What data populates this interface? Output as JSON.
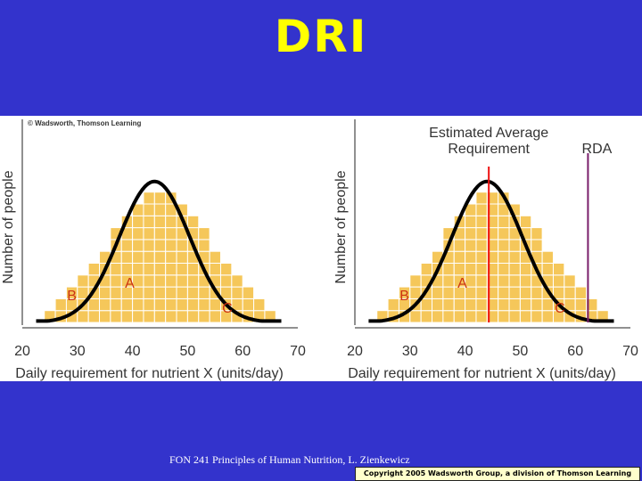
{
  "slide": {
    "title": "DRI",
    "footer": "FON 241 Principles of Human Nutrition, L. Zienkewicz",
    "copyright": "Copyright 2005 Wadsworth Group, a division of Thomson Learning"
  },
  "colors": {
    "background": "#3333cc",
    "title": "#ffff00",
    "bar_fill": "#f5c75a",
    "ear_line": "#ee1111",
    "rda_line": "#7a1f6b",
    "label": "#cc3311"
  },
  "chart_data": [
    {
      "type": "bar",
      "name": "left",
      "credit": "© Wadsworth, Thomson Learning",
      "xlabel": "Daily requirement for nutrient X (units/day)",
      "ylabel": "Number of people",
      "xlim": [
        20,
        70
      ],
      "x_ticks": [
        "20",
        "30",
        "40",
        "50",
        "60",
        "70"
      ],
      "bin_edges": [
        24,
        26,
        28,
        30,
        32,
        34,
        36,
        38,
        40,
        42,
        44,
        46,
        48,
        50,
        52,
        54,
        56,
        58,
        60,
        62,
        64
      ],
      "counts": [
        1,
        2,
        3,
        4,
        5,
        6,
        8,
        9,
        10,
        11,
        11,
        11,
        10,
        9,
        8,
        6,
        5,
        4,
        3,
        2,
        1
      ],
      "regions": [
        {
          "label": "B",
          "x": 29
        },
        {
          "label": "A",
          "x": 39.5
        },
        {
          "label": "C",
          "x": 57.2
        }
      ],
      "lines": []
    },
    {
      "type": "bar",
      "name": "right",
      "credit": "",
      "xlabel": "Daily requirement for nutrient X (units/day)",
      "ylabel": "Number of people",
      "xlim": [
        20,
        70
      ],
      "x_ticks": [
        "20",
        "30",
        "40",
        "50",
        "60",
        "70"
      ],
      "bin_edges": [
        24,
        26,
        28,
        30,
        32,
        34,
        36,
        38,
        40,
        42,
        44,
        46,
        48,
        50,
        52,
        54,
        56,
        58,
        60,
        62,
        64
      ],
      "counts": [
        1,
        2,
        3,
        4,
        5,
        6,
        8,
        9,
        10,
        11,
        11,
        11,
        10,
        9,
        8,
        6,
        5,
        4,
        3,
        2,
        1
      ],
      "regions": [
        {
          "label": "B",
          "x": 29
        },
        {
          "label": "A",
          "x": 39.5
        },
        {
          "label": "C",
          "x": 57.2
        }
      ],
      "lines": [
        {
          "label": "Estimated Average\nRequirement",
          "x": 44.3,
          "color": "#ee1111"
        },
        {
          "label": "RDA",
          "x": 62.3,
          "color": "#7a1f6b"
        }
      ]
    }
  ]
}
